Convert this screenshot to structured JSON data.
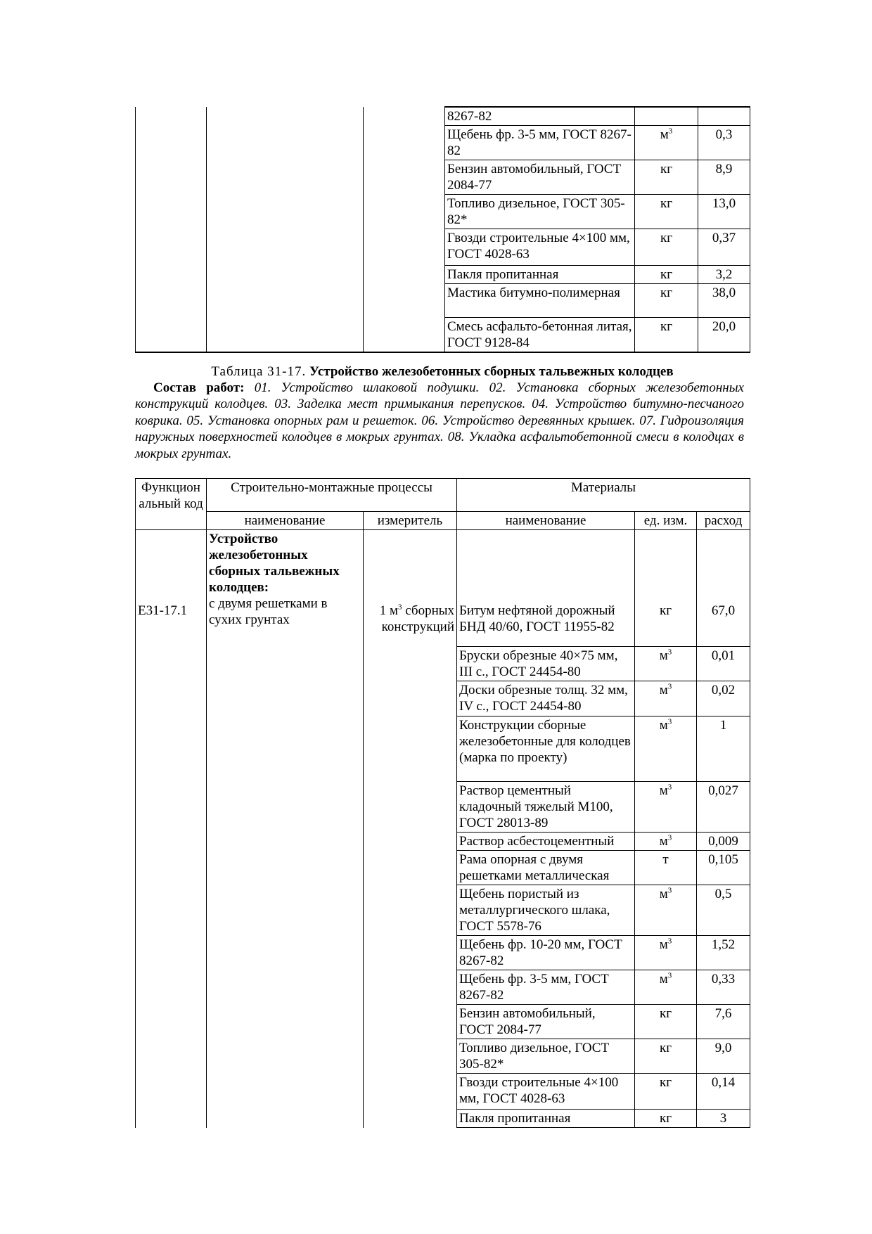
{
  "upper_table": {
    "rows": [
      {
        "name": "8267-82",
        "unit": "",
        "unit_sup": "",
        "rate": ""
      },
      {
        "name": "Щебень фр. 3-5 мм, ГОСТ 8267-82",
        "unit": "м",
        "unit_sup": "3",
        "rate": "0,3"
      },
      {
        "name": "Бензин автомобильный, ГОСТ 2084-77",
        "unit": "кг",
        "unit_sup": "",
        "rate": "8,9"
      },
      {
        "name": "Топливо дизельное, ГОСТ 305-82*",
        "unit": "кг",
        "unit_sup": "",
        "rate": "13,0"
      },
      {
        "name": "Гвозди строительные 4×100 мм, ГОСТ 4028-63",
        "unit": "кг",
        "unit_sup": "",
        "rate": "0,37"
      },
      {
        "name": "Пакля пропитанная",
        "unit": "кг",
        "unit_sup": "",
        "rate": "3,2"
      },
      {
        "name": "Мастика битумно-полимерная",
        "unit": "кг",
        "unit_sup": "",
        "rate": "38,0"
      },
      {
        "name": "Смесь асфальто-бетонная литая, ГОСТ 9128-84",
        "unit": "кг",
        "unit_sup": "",
        "rate": "20,0"
      }
    ]
  },
  "caption": {
    "label": "Таблица 31-17.",
    "title": "Устройство железобетонных сборных тальвежных колодцев"
  },
  "composition": {
    "label": "Состав работ:",
    "text": "01. Устройство шлаковой подушки. 02. Установка сборных железобетонных конструкций колодцев. 03. Заделка мест примыкания перепусков. 04. Устройство битумно-песчаного коврика. 05. Установка опорных рам и решеток. 06. Устройство деревянных крышек. 07. Гидроизоляция наружных поверхностей колодцев в мокрых грунтах. 08. Укладка асфальтобетонной смеси в колодцах в мокрых грунтах."
  },
  "lower_table": {
    "headers": {
      "code": "Функцион альный код",
      "processes": "Строительно-монтажные процессы",
      "materials": "Материалы",
      "proc_name": "наименование",
      "measure": "измеритель",
      "mat_name": "наименование",
      "unit": "ед. изм.",
      "rate": "расход"
    },
    "code": "Е31-17.1",
    "process_title": "Устройство железобетонных сборных тальвежных колодцев:",
    "process_sub": "с двумя решетками в сухих грунтах",
    "measure_pre": "1 м",
    "measure_sup": "3",
    "measure_post": " сборных конструкций",
    "rows": [
      {
        "name": "Битум нефтяной дорожный БНД 40/60, ГОСТ 11955-82",
        "unit": "кг",
        "unit_sup": "",
        "rate": "67,0"
      },
      {
        "name": "Бруски обрезные 40×75 мм, III с., ГОСТ 24454-80",
        "unit": "м",
        "unit_sup": "3",
        "rate": "0,01"
      },
      {
        "name": "Доски обрезные толщ. 32 мм, IV с.,  ГОСТ 24454-80",
        "unit": "м",
        "unit_sup": "3",
        "rate": "0,02"
      },
      {
        "name": "Конструкции сборные железобетонные для колодцев (марка по проекту)",
        "unit": "м",
        "unit_sup": "3",
        "rate": "1"
      },
      {
        "name": "Раствор цементный кладочный тяжелый М100, ГОСТ 28013-89",
        "unit": "м",
        "unit_sup": "3",
        "rate": "0,027"
      },
      {
        "name": "Раствор асбестоцементный",
        "unit": "м",
        "unit_sup": "3",
        "rate": "0,009"
      },
      {
        "name": "Рама опорная с двумя решетками металлическая",
        "unit": "т",
        "unit_sup": "",
        "rate": "0,105"
      },
      {
        "name": "Щебень пористый из металлургического шлака, ГОСТ 5578-76",
        "unit": "м",
        "unit_sup": "3",
        "rate": "0,5"
      },
      {
        "name": "Щебень фр. 10-20 мм, ГОСТ 8267-82",
        "unit": "м",
        "unit_sup": "3",
        "rate": "1,52"
      },
      {
        "name": "Щебень фр. 3-5 мм, ГОСТ 8267-82",
        "unit": "м",
        "unit_sup": "3",
        "rate": "0,33"
      },
      {
        "name": "Бензин автомобильный, ГОСТ 2084-77",
        "unit": "кг",
        "unit_sup": "",
        "rate": "7,6"
      },
      {
        "name": "Топливо дизельное, ГОСТ 305-82*",
        "unit": "кг",
        "unit_sup": "",
        "rate": "9,0"
      },
      {
        "name": "Гвозди строительные 4×100 мм, ГОСТ 4028-63",
        "unit": "кг",
        "unit_sup": "",
        "rate": "0,14"
      },
      {
        "name": "Пакля пропитанная",
        "unit": "кг",
        "unit_sup": "",
        "rate": "3"
      }
    ]
  }
}
